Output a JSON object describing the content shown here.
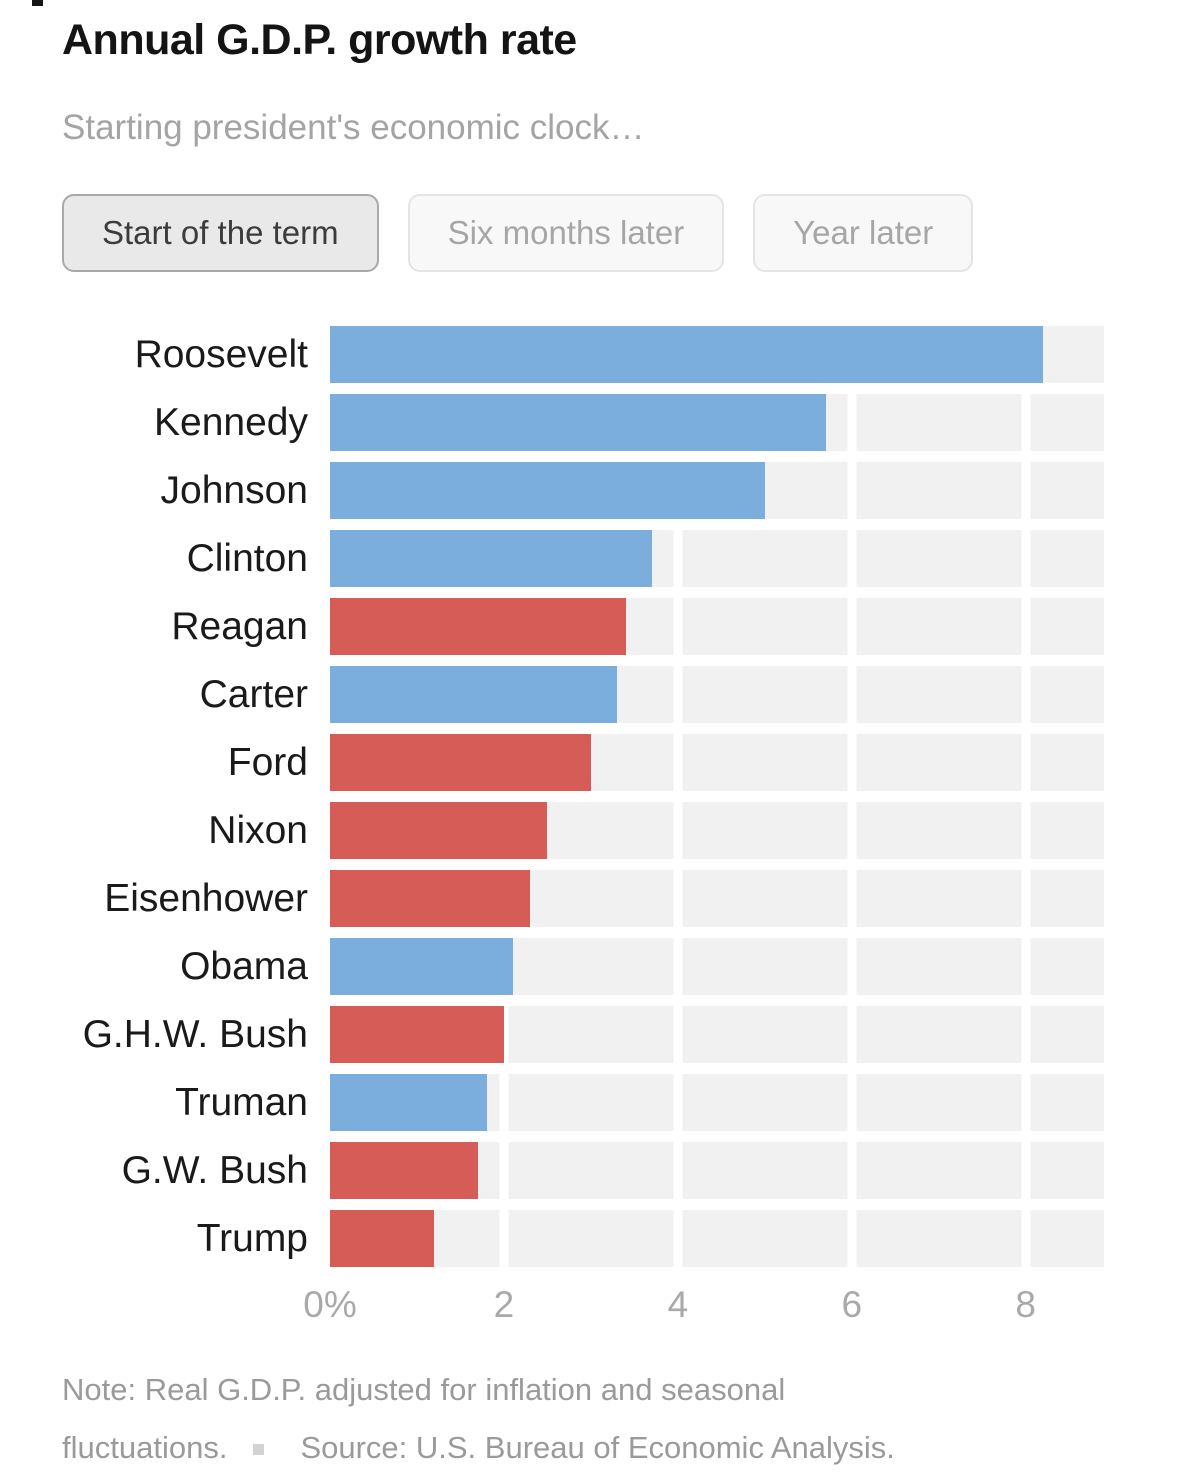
{
  "header": {
    "title": "Annual G.D.P. growth rate",
    "subtitle": "Starting president's economic clock…"
  },
  "toggle": {
    "options": [
      {
        "label": "Start of the term",
        "active": true
      },
      {
        "label": "Six months later",
        "active": false
      },
      {
        "label": "Year later",
        "active": false
      }
    ]
  },
  "chart_data": {
    "type": "bar",
    "orientation": "horizontal",
    "title": "Annual G.D.P. growth rate",
    "categories": [
      "Roosevelt",
      "Kennedy",
      "Johnson",
      "Clinton",
      "Reagan",
      "Carter",
      "Ford",
      "Nixon",
      "Eisenhower",
      "Obama",
      "G.H.W. Bush",
      "Truman",
      "G.W. Bush",
      "Trump"
    ],
    "values": [
      8.2,
      5.7,
      5.0,
      3.7,
      3.4,
      3.3,
      3.0,
      2.5,
      2.3,
      2.1,
      2.0,
      1.8,
      1.7,
      1.2
    ],
    "parties": [
      "D",
      "D",
      "D",
      "D",
      "R",
      "D",
      "R",
      "R",
      "R",
      "D",
      "R",
      "D",
      "R",
      "R"
    ],
    "party_colors": {
      "D": "#7baedc",
      "R": "#d65c58"
    },
    "xlim": [
      0,
      8.9
    ],
    "x_ticks": [
      {
        "value": 0,
        "label": "0%"
      },
      {
        "value": 2,
        "label": "2"
      },
      {
        "value": 4,
        "label": "4"
      },
      {
        "value": 6,
        "label": "6"
      },
      {
        "value": 8,
        "label": "8"
      }
    ],
    "gridlines": [
      2,
      4,
      6,
      8
    ],
    "plot_background": "#f1f1f1",
    "unit": "percent"
  },
  "footer": {
    "note_line1": "Note: Real G.D.P. adjusted for inflation and seasonal",
    "note_line2": "fluctuations.",
    "source": "Source: U.S. Bureau of Economic Analysis."
  }
}
